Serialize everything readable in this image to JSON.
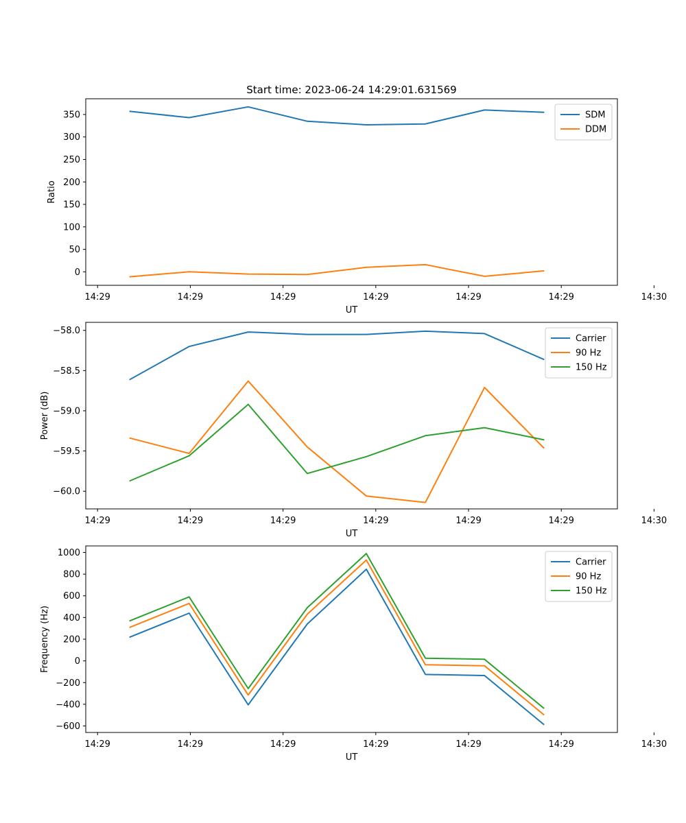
{
  "title": "Start time: 2023-06-24 14:29:01.631569",
  "chart_data": [
    {
      "type": "line",
      "xlabel": "UT",
      "ylabel": "Ratio",
      "x_tick_labels": [
        "14:29",
        "14:29",
        "14:29",
        "14:29",
        "14:29",
        "14:29",
        "14:30"
      ],
      "x": [
        1,
        2,
        3,
        4,
        5,
        6,
        7,
        8
      ],
      "xlim": [
        0.25,
        9.25
      ],
      "ylim": [
        -30,
        385
      ],
      "yticks": [
        0,
        50,
        100,
        150,
        200,
        250,
        300,
        350
      ],
      "legend_position": "upper right",
      "series": [
        {
          "name": "SDM",
          "color": "#1f77b4",
          "values": [
            357,
            343,
            367,
            335,
            327,
            329,
            360,
            355
          ]
        },
        {
          "name": "DDM",
          "color": "#ff7f0e",
          "values": [
            -11,
            0,
            -5,
            -6,
            10,
            16,
            -10,
            2
          ]
        }
      ]
    },
    {
      "type": "line",
      "xlabel": "UT",
      "ylabel": "Power (dB)",
      "x_tick_labels": [
        "14:29",
        "14:29",
        "14:29",
        "14:29",
        "14:29",
        "14:29",
        "14:30"
      ],
      "x": [
        1,
        2,
        3,
        4,
        5,
        6,
        7,
        8
      ],
      "xlim": [
        0.25,
        9.25
      ],
      "ylim": [
        -60.22,
        -57.9
      ],
      "yticks": [
        -60.0,
        -59.5,
        -59.0,
        -58.5,
        -58.0
      ],
      "legend_position": "upper right",
      "series": [
        {
          "name": "Carrier",
          "color": "#1f77b4",
          "values": [
            -58.61,
            -58.2,
            -58.02,
            -58.05,
            -58.05,
            -58.01,
            -58.04,
            -58.36
          ]
        },
        {
          "name": "90 Hz",
          "color": "#ff7f0e",
          "values": [
            -59.34,
            -59.53,
            -58.63,
            -59.45,
            -60.06,
            -60.14,
            -58.71,
            -59.46
          ]
        },
        {
          "name": "150 Hz",
          "color": "#2ca02c",
          "values": [
            -59.87,
            -59.56,
            -58.92,
            -59.78,
            -59.57,
            -59.31,
            -59.21,
            -59.36
          ]
        }
      ]
    },
    {
      "type": "line",
      "xlabel": "UT",
      "ylabel": "Frequency (Hz)",
      "x_tick_labels": [
        "14:29",
        "14:29",
        "14:29",
        "14:29",
        "14:29",
        "14:29",
        "14:30"
      ],
      "x": [
        1,
        2,
        3,
        4,
        5,
        6,
        7,
        8
      ],
      "xlim": [
        0.25,
        9.25
      ],
      "ylim": [
        -660,
        1060
      ],
      "yticks": [
        -600,
        -400,
        -200,
        0,
        200,
        400,
        600,
        800,
        1000
      ],
      "legend_position": "upper right",
      "series": [
        {
          "name": "Carrier",
          "color": "#1f77b4",
          "values": [
            220,
            440,
            -405,
            340,
            845,
            -125,
            -135,
            -585
          ]
        },
        {
          "name": "90 Hz",
          "color": "#ff7f0e",
          "values": [
            310,
            530,
            -315,
            430,
            930,
            -35,
            -45,
            -495
          ]
        },
        {
          "name": "150 Hz",
          "color": "#2ca02c",
          "values": [
            370,
            590,
            -255,
            490,
            990,
            25,
            15,
            -435
          ]
        }
      ]
    }
  ]
}
